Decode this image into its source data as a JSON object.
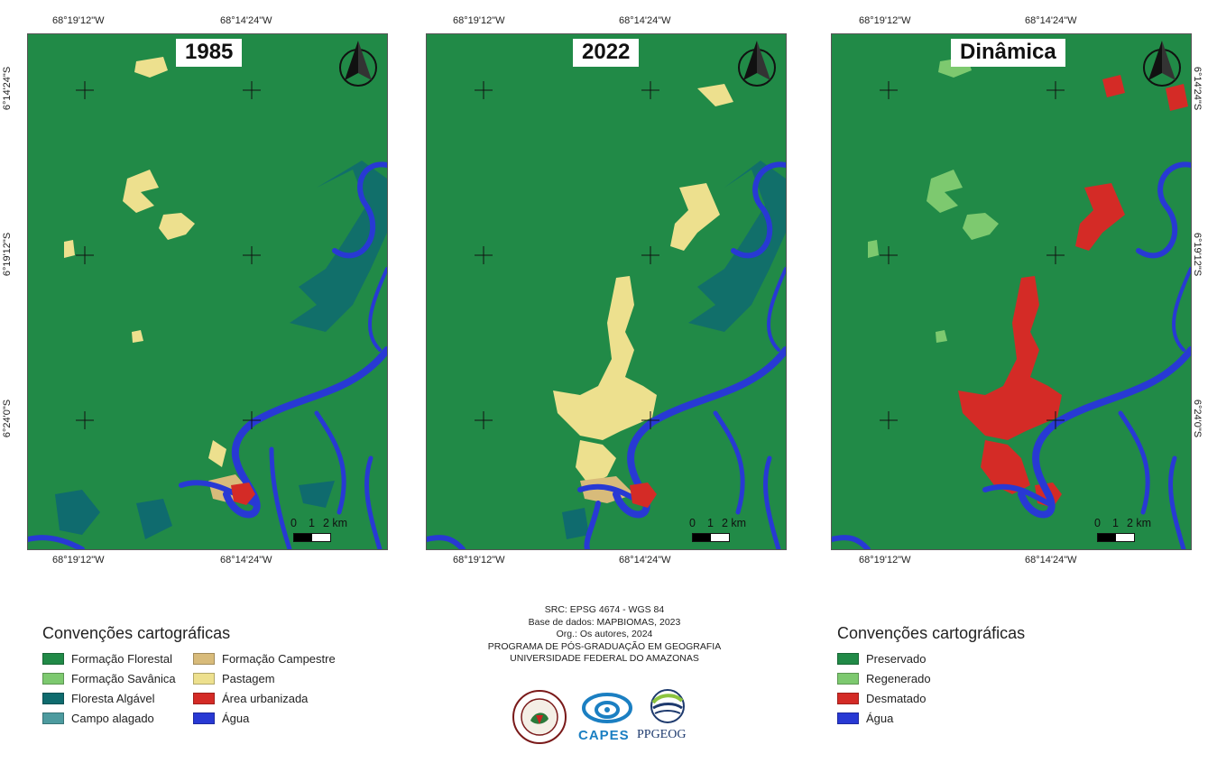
{
  "maps": [
    {
      "title": "1985"
    },
    {
      "title": "2022"
    },
    {
      "title": "Dinâmica"
    }
  ],
  "coords": {
    "lon_left": "68°19'12\"W",
    "lon_right": "68°14'24\"W",
    "lat_top": "6°14'24\"S",
    "lat_mid": "6°19'12\"S",
    "lat_bot": "6°24'0\"S"
  },
  "scale": {
    "l0": "0",
    "l1": "1",
    "l2": "2 km"
  },
  "legend_left": {
    "title": "Convenções cartográficas",
    "items": [
      {
        "label": "Formação Florestal",
        "color": "#218a47"
      },
      {
        "label": "Formação Savânica",
        "color": "#7dc96f"
      },
      {
        "label": "Floresta Algável",
        "color": "#0f6b6e"
      },
      {
        "label": "Campo alagado",
        "color": "#4d9b9f"
      },
      {
        "label": "Formação Campestre",
        "color": "#d8bb7a"
      },
      {
        "label": "Pastagem",
        "color": "#ede08e"
      },
      {
        "label": "Área urbanizada",
        "color": "#d42b26"
      },
      {
        "label": "Água",
        "color": "#2839d4"
      }
    ]
  },
  "legend_right": {
    "title": "Convenções cartográficas",
    "items": [
      {
        "label": "Preservado",
        "color": "#218a47"
      },
      {
        "label": "Regenerado",
        "color": "#7dc96f"
      },
      {
        "label": "Desmatado",
        "color": "#d42b26"
      },
      {
        "label": "Água",
        "color": "#2839d4"
      }
    ]
  },
  "credits": {
    "l1": "SRC: EPSG 4674 - WGS 84",
    "l2": "Base de dados: MAPBIOMAS, 2023",
    "l3": "Org.: Os autores, 2024",
    "l4": "PROGRAMA DE PÓS-GRADUAÇÃO EM GEOGRAFIA",
    "l5": "UNIVERSIDADE FEDERAL DO AMAZONAS"
  },
  "logos": {
    "capes": "CAPES",
    "ppgeog": "PPGEOG"
  },
  "icons": [
    "north-arrow-icon",
    "ufam-seal-icon",
    "capes-logo-icon",
    "ppgeog-logo-icon"
  ]
}
